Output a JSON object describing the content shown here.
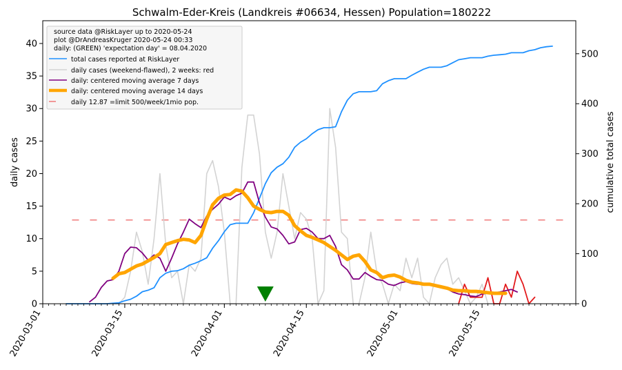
{
  "chart_data": {
    "type": "line",
    "title": "Schwalm-Eder-Kreis (Landkreis #06634, Hessen) Population=180222",
    "ylabel_left": "daily cases",
    "ylabel_right": "cumulative total cases",
    "ylim_left": [
      0,
      43.5
    ],
    "ylim_right": [
      0,
      566
    ],
    "xlim": [
      "2020-03-01",
      "2020-05-31"
    ],
    "x_ticks": [
      "2020-03-01",
      "2020-03-15",
      "2020-04-01",
      "2020-04-15",
      "2020-05-01",
      "2020-05-15"
    ],
    "y_ticks_left": [
      "0",
      "5",
      "10",
      "15",
      "20",
      "25",
      "30",
      "35",
      "40"
    ],
    "y_ticks_right": [
      "0",
      "100",
      "200",
      "300",
      "400",
      "500"
    ],
    "colors": {
      "cumulative": "#1e90ff",
      "daily_raw": "#d3d3d3",
      "daily_recent": "#e31a1c",
      "avg7": "#800080",
      "avg14": "#ffa500",
      "limit": "#f08080",
      "marker": "#008000",
      "left_label": "#800080",
      "right_label": "#1e90ff"
    },
    "legend_position": "top-left",
    "legend": {
      "header": [
        "source data @RiskLayer up to 2020-05-24",
        "plot @DrAndreasKruger 2020-05-24 00:33",
        "daily: (GREEN) 'expectation day' = 08.04.2020"
      ],
      "entries": [
        {
          "key": "cumulative",
          "label": "total cases reported at RiskLayer"
        },
        {
          "key": "daily_raw",
          "label": "daily cases (weekend-flawed), 2 weeks: red"
        },
        {
          "key": "avg7",
          "label": "daily: centered moving average 7 days"
        },
        {
          "key": "avg14",
          "label": "daily: centered moving average 14 days"
        },
        {
          "key": "limit",
          "label": "daily 12.87 =limit 500/week/1mio pop."
        }
      ]
    },
    "limit_value": 12.87,
    "limit_x_range": [
      "2020-03-06",
      "2020-05-29"
    ],
    "expectation_day": "2020-04-08",
    "daily_raw": {
      "start": "2020-03-05",
      "values": [
        0,
        0,
        0,
        0,
        0,
        0,
        0,
        0,
        0,
        0,
        1,
        5,
        11,
        8,
        3,
        10,
        20,
        9,
        4,
        5,
        0,
        6,
        5,
        7,
        20,
        22,
        18,
        11,
        0,
        0,
        21,
        29,
        29,
        23,
        11,
        7,
        11,
        20,
        15,
        10,
        14,
        13,
        10,
        0,
        2,
        30,
        24,
        11,
        10,
        0,
        0,
        4,
        11,
        5,
        3,
        0,
        3,
        2,
        7,
        4,
        7,
        1,
        0,
        4,
        6,
        7,
        3,
        4,
        2,
        0,
        1,
        3,
        0
      ]
    },
    "daily_recent": {
      "start": "2020-05-11",
      "values": [
        0,
        3,
        1,
        1,
        1,
        4,
        0,
        0,
        3,
        1,
        5,
        3,
        0,
        1
      ]
    },
    "avg7": {
      "start": "2020-03-09",
      "values": [
        0.3,
        1,
        2.5,
        3.5,
        3.7,
        5,
        7.7,
        8.7,
        8.6,
        7.8,
        6.7,
        7.5,
        7,
        5,
        7,
        9.2,
        11,
        13,
        12.3,
        11.7,
        13.5,
        14.5,
        15.3,
        16.4,
        16,
        16.6,
        17,
        18.7,
        18.7,
        15.5,
        13.3,
        11.8,
        11.5,
        10.5,
        9.2,
        9.5,
        11.4,
        11.6,
        11,
        10,
        10,
        10.5,
        8.8,
        6,
        5.2,
        3.8,
        3.8,
        4.8,
        4.2,
        3.7,
        3.6,
        3,
        2.8,
        3.2,
        3.4,
        3.1,
        3,
        3,
        2.9,
        2.9,
        2.6,
        2.3,
        1.8,
        1.5,
        1.4,
        1.2,
        1.1,
        1.5,
        1.6,
        1.7,
        1.8,
        2,
        2.2,
        1.8
      ]
    },
    "avg14": {
      "start": "2020-03-13",
      "values": [
        3.9,
        4.6,
        4.8,
        5.3,
        5.8,
        6.1,
        6.6,
        7.1,
        7.7,
        9.1,
        9.4,
        9.7,
        9.9,
        9.8,
        9.4,
        10.5,
        13,
        15.2,
        16.2,
        16.7,
        16.8,
        17.5,
        17.3,
        16.3,
        15,
        14.5,
        14.1,
        14,
        14.2,
        14.2,
        13.6,
        12,
        11.2,
        10.5,
        10.2,
        9.8,
        9.4,
        8.8,
        8.2,
        7.5,
        6.8,
        7.3,
        7.5,
        6.5,
        5.2,
        4.8,
        4,
        4.3,
        4.4,
        4.1,
        3.6,
        3.3,
        3.2,
        3,
        3,
        2.8,
        2.6,
        2.4,
        2.1,
        2,
        2,
        1.9,
        1.9,
        1.8,
        1.7,
        1.6,
        1.6,
        1.6
      ]
    },
    "cumulative": {
      "start": "2020-03-05",
      "values": [
        0,
        0,
        0,
        0,
        0,
        0,
        0,
        0,
        1,
        2,
        6,
        9,
        15,
        24,
        27,
        32,
        52,
        61,
        65,
        66,
        70,
        77,
        81,
        86,
        92,
        111,
        126,
        144,
        158,
        161,
        161,
        161,
        182,
        211,
        240,
        262,
        273,
        280,
        293,
        313,
        323,
        330,
        340,
        348,
        352,
        352,
        354,
        384,
        407,
        420,
        424,
        424,
        424,
        426,
        440,
        446,
        450,
        450,
        450,
        457,
        463,
        469,
        473,
        473,
        473,
        476,
        482,
        488,
        490,
        492,
        492,
        492,
        495,
        497,
        498,
        499,
        502,
        502,
        502,
        506,
        508,
        512,
        514,
        515
      ]
    }
  }
}
